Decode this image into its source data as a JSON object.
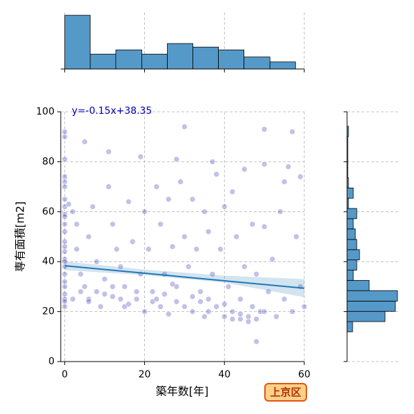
{
  "chart_data": [
    {
      "type": "scatter",
      "x": [
        0,
        0,
        0,
        0,
        0,
        0,
        0,
        0,
        0,
        0,
        0,
        0,
        0,
        0,
        0,
        0,
        0,
        0,
        0,
        0,
        0,
        0,
        0,
        0,
        0,
        1,
        2,
        3,
        3,
        4,
        5,
        5,
        6,
        6,
        7,
        8,
        8,
        9,
        10,
        11,
        11,
        12,
        12,
        13,
        14,
        15,
        15,
        16,
        17,
        18,
        19,
        19,
        20,
        20,
        21,
        22,
        23,
        24,
        24,
        25,
        26,
        26,
        27,
        28,
        28,
        29,
        30,
        30,
        30,
        31,
        32,
        32,
        33,
        34,
        35,
        35,
        36,
        36,
        37,
        37,
        38,
        38,
        39,
        40,
        40,
        41,
        42,
        42,
        43,
        44,
        44,
        45,
        45,
        46,
        47,
        47,
        48,
        48,
        49,
        50,
        50,
        50,
        51,
        52,
        53,
        54,
        55,
        55,
        56,
        57,
        57,
        58,
        59,
        60,
        59,
        2,
        4,
        6,
        10,
        14,
        16,
        18,
        22,
        25,
        28,
        32,
        34,
        36,
        40,
        42,
        44,
        46,
        48,
        50,
        27,
        23,
        12
      ],
      "values": [
        92,
        90,
        81,
        74,
        72,
        70,
        65,
        62,
        59,
        58,
        55,
        52,
        48,
        46,
        44,
        41,
        40,
        38,
        35,
        32,
        30,
        27,
        25,
        24,
        22,
        63,
        60,
        55,
        45,
        35,
        88,
        30,
        50,
        25,
        62,
        40,
        28,
        22,
        33,
        84,
        70,
        55,
        26,
        45,
        38,
        30,
        22,
        64,
        48,
        25,
        82,
        35,
        60,
        20,
        45,
        28,
        70,
        55,
        22,
        35,
        65,
        19,
        46,
        81,
        24,
        72,
        94,
        50,
        22,
        38,
        65,
        20,
        45,
        28,
        60,
        18,
        52,
        25,
        80,
        35,
        22,
        75,
        45,
        18,
        62,
        30,
        20,
        68,
        50,
        17,
        25,
        77,
        38,
        18,
        55,
        22,
        8,
        35,
        20,
        93,
        54,
        79,
        28,
        41,
        18,
        60,
        72,
        25,
        78,
        92,
        20,
        50,
        30,
        22,
        74,
        25,
        28,
        24,
        27,
        25,
        23,
        28,
        24,
        27,
        30,
        26,
        24,
        20,
        23,
        17,
        19,
        16,
        17,
        20,
        31,
        25,
        30
      ],
      "color": "#2020b0",
      "xlim": [
        -1,
        60
      ],
      "ylim": [
        0,
        100
      ],
      "xticks": [
        0,
        20,
        40,
        60
      ],
      "yticks": [
        0,
        20,
        40,
        60,
        80,
        100
      ],
      "xlabel": "築年数[年]",
      "ylabel": "専有面積[m2]",
      "grid": true,
      "annotation": "y=-0.15x+38.35",
      "regression": {
        "x": [
          0,
          60
        ],
        "values": [
          38.35,
          29.35
        ],
        "color": "#1f77b4"
      },
      "band": {
        "x": [
          0,
          20,
          40,
          60
        ],
        "lower": [
          36.6,
          34.6,
          31.6,
          25.8
        ],
        "upper": [
          40.1,
          36.8,
          34.4,
          33.0
        ]
      },
      "badge": "上京区"
    },
    {
      "type": "histogram",
      "bins": [
        0,
        6.4,
        12.8,
        19.3,
        25.7,
        32.1,
        38.5,
        44.9,
        51.4,
        57.8
      ],
      "counts": [
        152,
        42,
        54,
        42,
        72,
        62,
        54,
        34,
        20
      ],
      "color": "#5599c8",
      "xlim": [
        -1,
        60
      ],
      "xticks": [
        0,
        20,
        40,
        60
      ],
      "ylim": [
        0,
        160
      ],
      "grid": true
    },
    {
      "type": "histogram_horizontal",
      "bins": [
        11.9,
        16.0,
        20.1,
        24.2,
        28.4,
        32.5,
        36.6,
        40.7,
        44.8,
        48.9,
        53.1,
        57.2,
        61.3,
        65.4,
        69.5,
        73.6,
        77.8,
        81.9,
        86.0,
        90.1,
        94.2
      ],
      "counts": [
        8,
        55,
        70,
        73,
        32,
        9,
        14,
        18,
        14,
        12,
        9,
        14,
        2,
        9,
        2,
        1,
        1,
        1,
        1,
        2
      ],
      "color": "#5599c8",
      "xlim": [
        0,
        75
      ],
      "ylim": [
        0,
        100
      ],
      "yticks": [
        0,
        20,
        40,
        60,
        80,
        100
      ],
      "grid": true
    }
  ]
}
